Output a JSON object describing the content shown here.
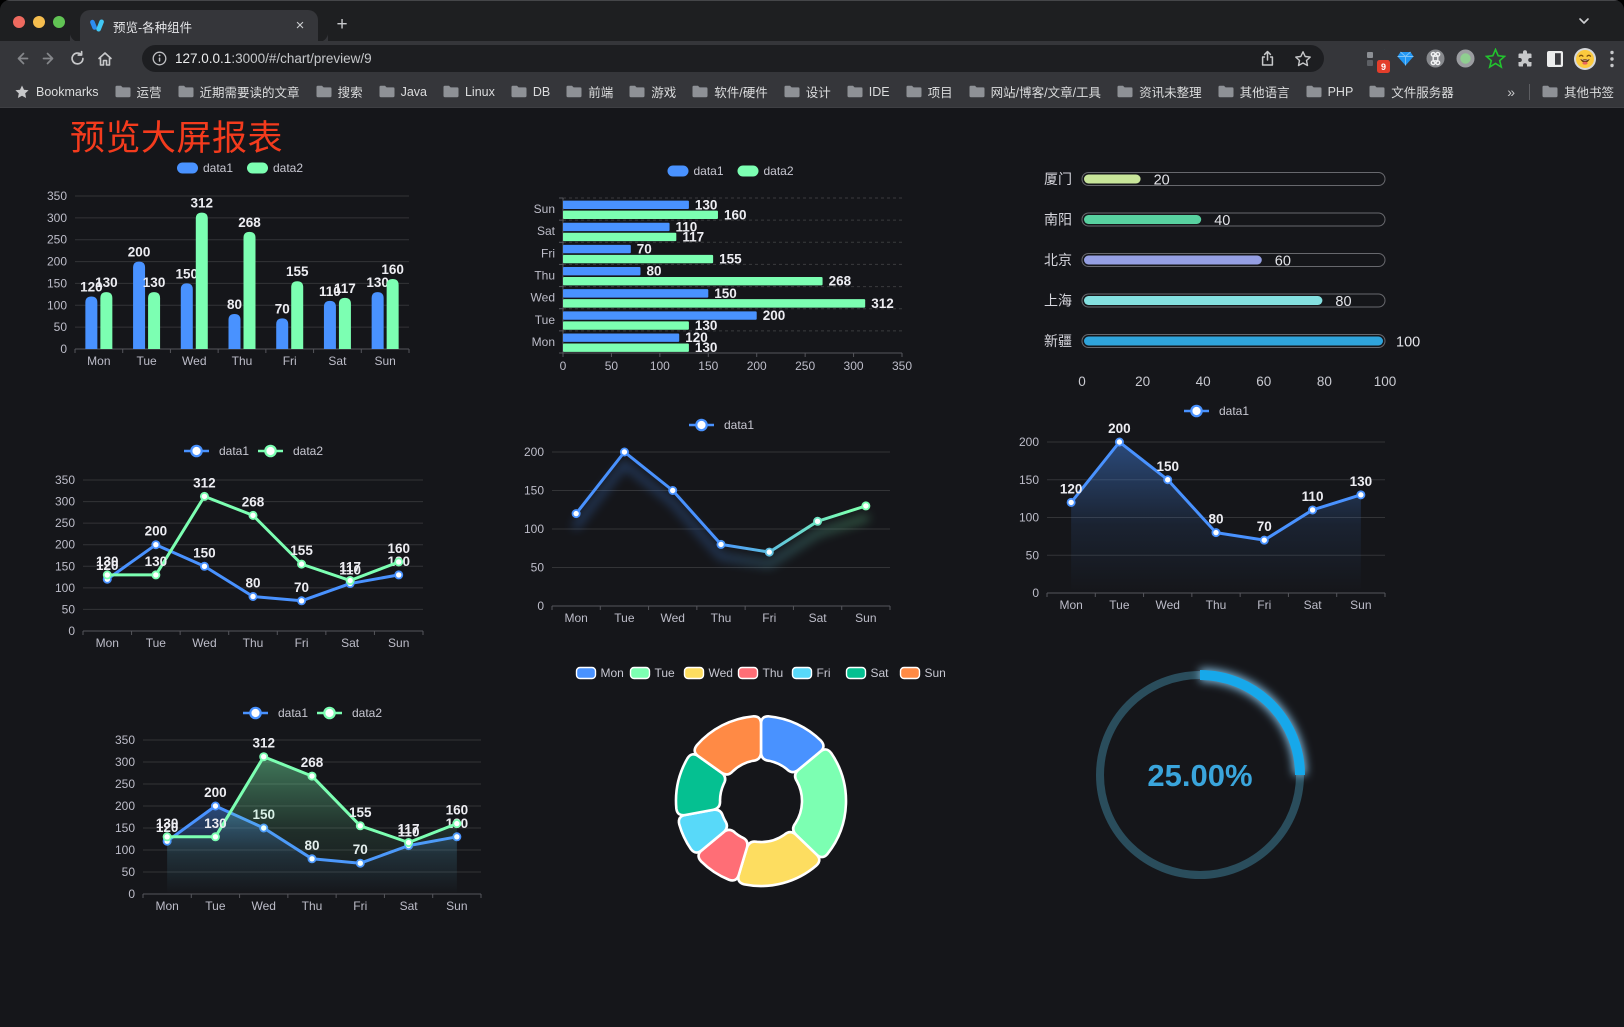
{
  "browser": {
    "tab": {
      "title": "预览-各种组件",
      "close_glyph": "×",
      "newtab_glyph": "+"
    },
    "url": {
      "host": "127.0.0.1",
      "path": ":3000/#/chart/preview/9"
    },
    "bookmarks": {
      "label": "Bookmarks",
      "folders": [
        "运营",
        "近期需要读的文章",
        "搜索",
        "Java",
        "Linux",
        "DB",
        "前端",
        "游戏",
        "软件/硬件",
        "设计",
        "IDE",
        "项目",
        "网站/博客/文章/工具",
        "资讯未整理",
        "其他语言",
        "PHP",
        "文件服务器"
      ],
      "overflow_glyph": "»",
      "other_bookmarks": "其他书签"
    },
    "extension_badge": "9"
  },
  "page": {
    "title": "预览大屏报表"
  },
  "chart_data": [
    {
      "id": "bar-vertical",
      "type": "bar",
      "categories": [
        "Mon",
        "Tue",
        "Wed",
        "Thu",
        "Fri",
        "Sat",
        "Sun"
      ],
      "series": [
        {
          "name": "data1",
          "color": "#4992ff",
          "values": [
            120,
            200,
            150,
            80,
            70,
            110,
            130
          ]
        },
        {
          "name": "data2",
          "color": "#7cffb2",
          "values": [
            130,
            130,
            312,
            268,
            155,
            117,
            160
          ]
        }
      ],
      "ylim": [
        0,
        350
      ],
      "ytick": 50,
      "legend_position": "top",
      "grid": true
    },
    {
      "id": "bar-horizontal",
      "type": "bar-horizontal",
      "categories": [
        "Mon",
        "Tue",
        "Wed",
        "Thu",
        "Fri",
        "Sat",
        "Sun"
      ],
      "series": [
        {
          "name": "data1",
          "color": "#4992ff",
          "values": [
            120,
            200,
            150,
            80,
            70,
            110,
            130
          ]
        },
        {
          "name": "data2",
          "color": "#7cffb2",
          "values": [
            130,
            130,
            312,
            268,
            155,
            117,
            160
          ]
        }
      ],
      "xlim": [
        0,
        350
      ],
      "xtick": 50,
      "legend_position": "top",
      "grid": true
    },
    {
      "id": "progress-bars",
      "type": "progress",
      "items": [
        {
          "label": "厦门",
          "value": 20,
          "color": "#c8e59a"
        },
        {
          "label": "南阳",
          "value": 40,
          "color": "#58d1a0"
        },
        {
          "label": "北京",
          "value": 60,
          "color": "#959fe3"
        },
        {
          "label": "上海",
          "value": 80,
          "color": "#84e0e0"
        },
        {
          "label": "新疆",
          "value": 100,
          "color": "#2fa4db"
        }
      ],
      "xlim": [
        0,
        100
      ],
      "ticks": [
        0,
        20,
        40,
        60,
        80,
        100
      ]
    },
    {
      "id": "line-two-series",
      "type": "line",
      "categories": [
        "Mon",
        "Tue",
        "Wed",
        "Thu",
        "Fri",
        "Sat",
        "Sun"
      ],
      "series": [
        {
          "name": "data1",
          "color": "#4992ff",
          "values": [
            120,
            200,
            150,
            80,
            70,
            110,
            130
          ]
        },
        {
          "name": "data2",
          "color": "#7cffb2",
          "values": [
            130,
            130,
            312,
            268,
            155,
            117,
            160
          ]
        }
      ],
      "ylim": [
        0,
        350
      ],
      "ytick": 50,
      "labels": true,
      "legend_position": "top",
      "grid": true
    },
    {
      "id": "line-gradient",
      "type": "line",
      "categories": [
        "Mon",
        "Tue",
        "Wed",
        "Thu",
        "Fri",
        "Sat",
        "Sun"
      ],
      "series": [
        {
          "name": "data1",
          "gradient": [
            "#4992ff",
            "#7cffb2"
          ],
          "color": "#4992ff",
          "values": [
            120,
            200,
            150,
            80,
            70,
            110,
            130
          ],
          "shadow": true
        }
      ],
      "ylim": [
        0,
        200
      ],
      "ytick": 50,
      "labels": false,
      "legend_position": "top",
      "grid": true
    },
    {
      "id": "area-single",
      "type": "line",
      "categories": [
        "Mon",
        "Tue",
        "Wed",
        "Thu",
        "Fri",
        "Sat",
        "Sun"
      ],
      "series": [
        {
          "name": "data1",
          "color": "#4992ff",
          "values": [
            120,
            200,
            150,
            80,
            70,
            110,
            130
          ],
          "area": true
        }
      ],
      "ylim": [
        0,
        200
      ],
      "ytick": 50,
      "labels": true,
      "legend_position": "top",
      "grid": true
    },
    {
      "id": "area-two-series",
      "type": "line",
      "categories": [
        "Mon",
        "Tue",
        "Wed",
        "Thu",
        "Fri",
        "Sat",
        "Sun"
      ],
      "series": [
        {
          "name": "data1",
          "color": "#4992ff",
          "values": [
            120,
            200,
            150,
            80,
            70,
            110,
            130
          ],
          "area": true
        },
        {
          "name": "data2",
          "color": "#7cffb2",
          "values": [
            130,
            130,
            312,
            268,
            155,
            117,
            160
          ],
          "area": true
        }
      ],
      "ylim": [
        0,
        350
      ],
      "ytick": 50,
      "labels": true,
      "legend_position": "top",
      "grid": true
    },
    {
      "id": "donut",
      "type": "pie",
      "items": [
        {
          "label": "Mon",
          "value": 120,
          "color": "#4992ff"
        },
        {
          "label": "Tue",
          "value": 200,
          "color": "#7cffb2"
        },
        {
          "label": "Wed",
          "value": 150,
          "color": "#fddd60"
        },
        {
          "label": "Thu",
          "value": 80,
          "color": "#ff6e76"
        },
        {
          "label": "Fri",
          "value": 70,
          "color": "#58d9f9"
        },
        {
          "label": "Sat",
          "value": 110,
          "color": "#05c091"
        },
        {
          "label": "Sun",
          "value": 130,
          "color": "#ff8a45"
        }
      ],
      "legend_position": "top",
      "start_angle": 90,
      "clockwise": true
    },
    {
      "id": "gauge-ring",
      "type": "gauge",
      "value": 25,
      "label": "25.00%",
      "color": "#17a8ea",
      "track_color": "#2a4d5c",
      "text_color": "#3aa5dc"
    }
  ]
}
